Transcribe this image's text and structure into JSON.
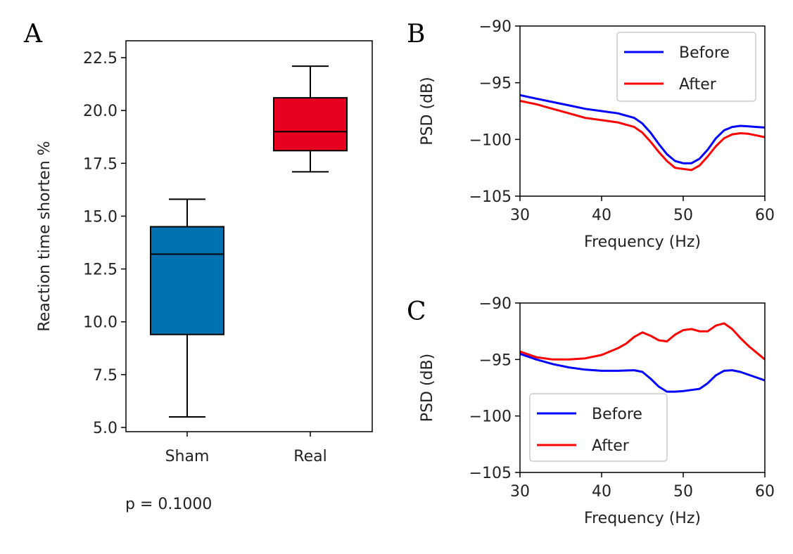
{
  "chart_data": [
    {
      "panel": "A",
      "type": "box",
      "categories": [
        "Sham",
        "Real"
      ],
      "boxes": [
        {
          "category": "Sham",
          "whislo": 5.5,
          "q1": 9.4,
          "med": 13.2,
          "q3": 14.5,
          "whishi": 15.8,
          "color": "#0072B2"
        },
        {
          "category": "Real",
          "whislo": 17.1,
          "q1": 18.1,
          "med": 19.0,
          "q3": 20.6,
          "whishi": 22.1,
          "color": "#E8001F"
        }
      ],
      "ylabel": "Reaction time shorten %",
      "ylim": [
        4.8,
        23.3
      ],
      "yticks": [
        "5.0",
        "7.5",
        "10.0",
        "12.5",
        "15.0",
        "17.5",
        "20.0",
        "22.5"
      ],
      "annotation": "p = 0.1000",
      "grid": false
    },
    {
      "panel": "B",
      "type": "line",
      "xlabel": "Frequency (Hz)",
      "ylabel": "PSD (dB)",
      "xlim": [
        30,
        60
      ],
      "ylim": [
        -105,
        -90
      ],
      "xticks": [
        "30",
        "40",
        "50",
        "60"
      ],
      "yticks": [
        "−90",
        "−95",
        "−100",
        "−105"
      ],
      "legend": "top-right",
      "grid": false,
      "series": [
        {
          "name": "Before",
          "color": "#0000FF",
          "x": [
            30,
            32,
            34,
            36,
            38,
            40,
            42,
            44,
            45,
            46,
            47,
            48,
            49,
            50,
            51,
            52,
            53,
            54,
            55,
            56,
            57,
            58,
            59,
            60
          ],
          "y": [
            -96.1,
            -96.4,
            -96.7,
            -97.0,
            -97.3,
            -97.5,
            -97.7,
            -98.1,
            -98.6,
            -99.4,
            -100.4,
            -101.3,
            -101.9,
            -102.1,
            -102.1,
            -101.7,
            -100.9,
            -99.9,
            -99.2,
            -98.9,
            -98.8,
            -98.85,
            -98.9,
            -98.95
          ]
        },
        {
          "name": "After",
          "color": "#FF0000",
          "x": [
            30,
            32,
            34,
            36,
            38,
            40,
            42,
            44,
            45,
            46,
            47,
            48,
            49,
            50,
            51,
            52,
            53,
            54,
            55,
            56,
            57,
            58,
            59,
            60
          ],
          "y": [
            -96.6,
            -96.9,
            -97.3,
            -97.7,
            -98.1,
            -98.3,
            -98.5,
            -98.9,
            -99.4,
            -100.2,
            -101.1,
            -101.9,
            -102.5,
            -102.6,
            -102.7,
            -102.3,
            -101.5,
            -100.6,
            -99.9,
            -99.55,
            -99.45,
            -99.5,
            -99.65,
            -99.8
          ]
        }
      ]
    },
    {
      "panel": "C",
      "type": "line",
      "xlabel": "Frequency (Hz)",
      "ylabel": "PSD (dB)",
      "xlim": [
        30,
        60
      ],
      "ylim": [
        -105,
        -90
      ],
      "xticks": [
        "30",
        "40",
        "50",
        "60"
      ],
      "yticks": [
        "−90",
        "−95",
        "−100",
        "−105"
      ],
      "legend": "lower-left",
      "grid": false,
      "series": [
        {
          "name": "Before",
          "color": "#0000FF",
          "x": [
            30,
            32,
            34,
            36,
            38,
            40,
            42,
            44,
            45,
            46,
            47,
            48,
            49,
            50,
            51,
            52,
            53,
            54,
            55,
            56,
            57,
            58,
            59,
            60
          ],
          "y": [
            -94.5,
            -95.0,
            -95.4,
            -95.7,
            -95.9,
            -96.0,
            -96.0,
            -95.95,
            -96.1,
            -96.7,
            -97.4,
            -97.85,
            -97.85,
            -97.8,
            -97.7,
            -97.6,
            -97.1,
            -96.4,
            -96.0,
            -95.95,
            -96.1,
            -96.35,
            -96.6,
            -96.85
          ]
        },
        {
          "name": "After",
          "color": "#FF0000",
          "x": [
            30,
            32,
            34,
            36,
            38,
            40,
            42,
            43,
            44,
            45,
            46,
            47,
            48,
            49,
            50,
            51,
            52,
            53,
            54,
            55,
            56,
            57,
            58,
            59,
            60
          ],
          "y": [
            -94.3,
            -94.8,
            -95.0,
            -95.0,
            -94.9,
            -94.6,
            -94.0,
            -93.6,
            -93.0,
            -92.6,
            -92.9,
            -93.3,
            -93.4,
            -92.8,
            -92.4,
            -92.3,
            -92.5,
            -92.5,
            -92.0,
            -91.8,
            -92.3,
            -93.1,
            -93.8,
            -94.4,
            -95.0
          ]
        }
      ]
    }
  ]
}
